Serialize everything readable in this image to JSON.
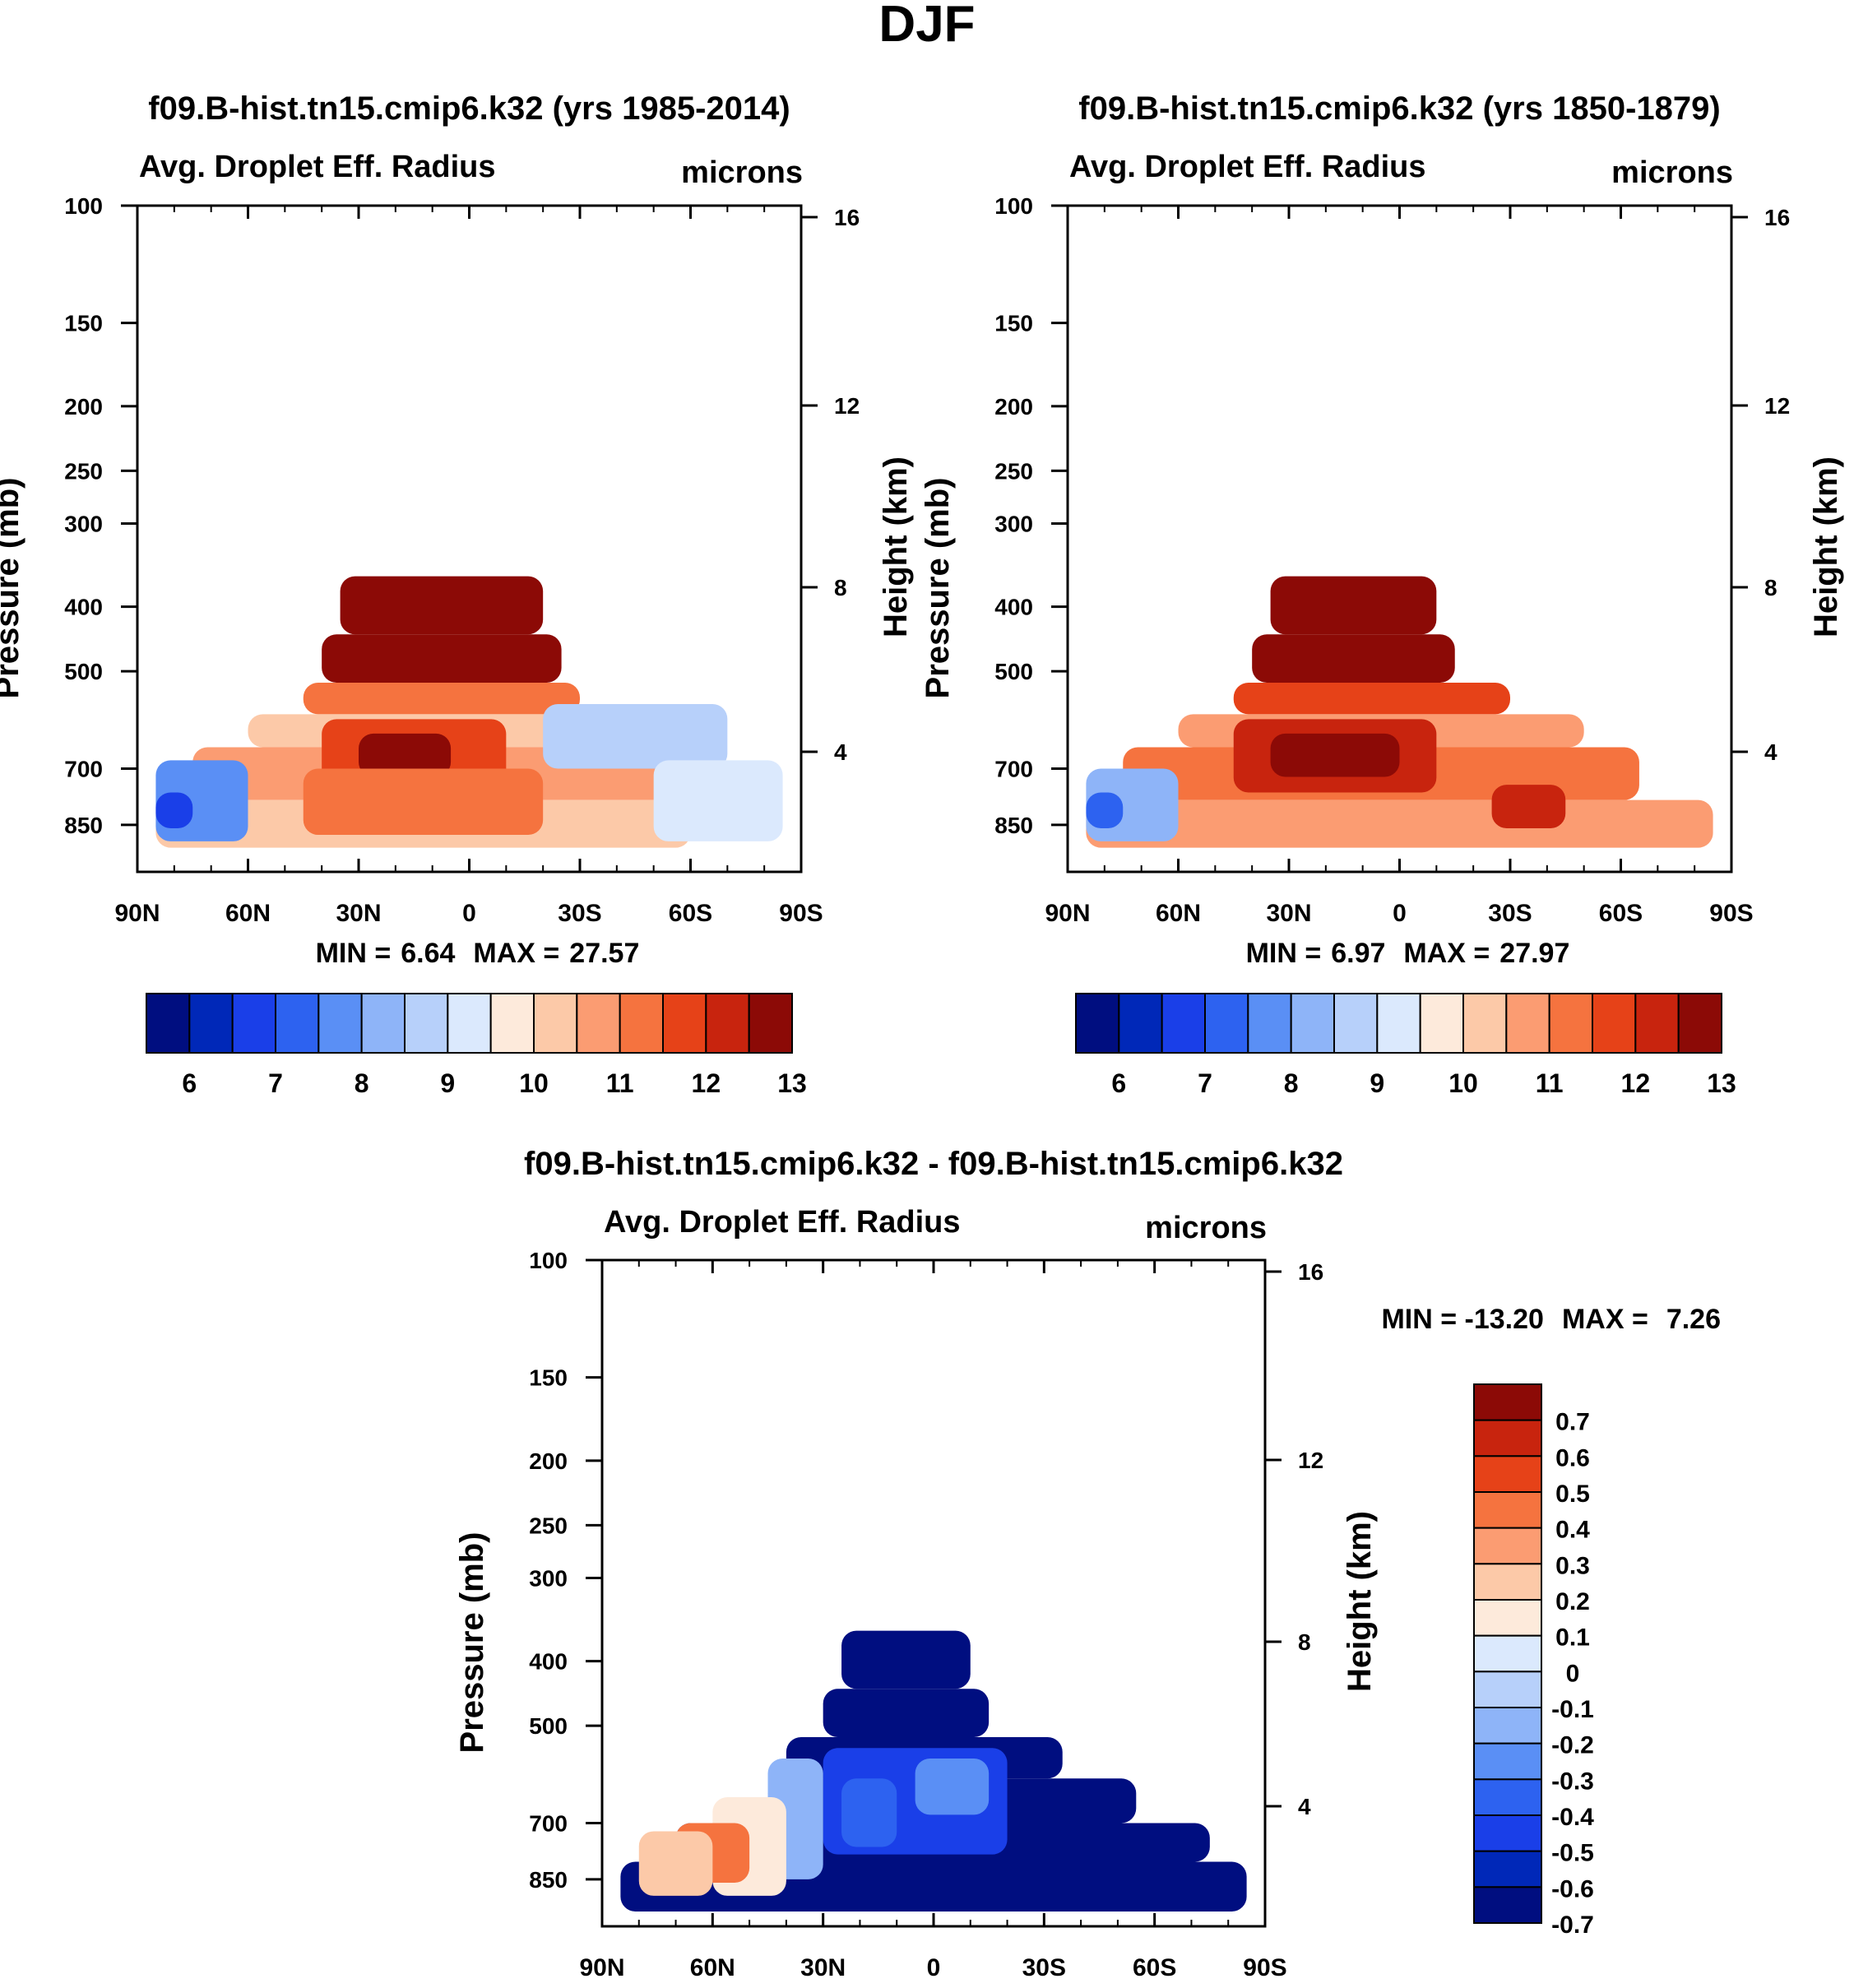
{
  "figure_title": "DJF",
  "colors": {
    "scale14": [
      "#000e80",
      "#0028b8",
      "#1a3fe8",
      "#2d62f0",
      "#5a8ff5",
      "#8eb4f8",
      "#b7d0fa",
      "#dbe9fd",
      "#fdeadb",
      "#fcc9a8",
      "#fb9c72",
      "#f5733f",
      "#e64218",
      "#c8240e",
      "#8c0a06"
    ],
    "diff": [
      "#000e80",
      "#0028b8",
      "#1a3fe8",
      "#2d62f0",
      "#5a8ff5",
      "#8eb4f8",
      "#b7d0fa",
      "#dbe9fd",
      "#fdeadb",
      "#fcc9a8",
      "#fb9c72",
      "#f5733f",
      "#e64218",
      "#c8240e",
      "#8c0a06"
    ]
  },
  "chart_data": [
    {
      "type": "heatmap",
      "id": "panel-1",
      "title": "f09.B-hist.tn15.cmip6.k32 (yrs 1985-2014)",
      "left_string": "Avg. Droplet Eff. Radius",
      "right_string": "microns",
      "ylabel": "Pressure (mb)",
      "ylabel_right": "Height (km)",
      "x_ticks": [
        "90N",
        "60N",
        "30N",
        "0",
        "30S",
        "60S",
        "90S"
      ],
      "y_ticks": [
        100,
        150,
        200,
        250,
        300,
        400,
        500,
        700,
        850
      ],
      "y_range": [
        100,
        1000
      ],
      "y_right_ticks": [
        16,
        12,
        8,
        4
      ],
      "stats": {
        "min_label": "MIN =",
        "min": "6.64",
        "max_label": "MAX =",
        "max": "27.57"
      },
      "colorbar_labels": [
        "6",
        "7",
        "8",
        "9",
        "10",
        "11",
        "12",
        "13"
      ],
      "field": [
        {
          "lat": [
            -20,
            35
          ],
          "p": [
            360,
            440
          ],
          "level": 14
        },
        {
          "lat": [
            -25,
            40
          ],
          "p": [
            440,
            520
          ],
          "level": 14
        },
        {
          "lat": [
            -30,
            45
          ],
          "p": [
            520,
            580
          ],
          "level": 11
        },
        {
          "lat": [
            -45,
            60
          ],
          "p": [
            580,
            650
          ],
          "level": 9
        },
        {
          "lat": [
            -55,
            75
          ],
          "p": [
            650,
            780
          ],
          "level": 10
        },
        {
          "lat": [
            -60,
            85
          ],
          "p": [
            780,
            920
          ],
          "level": 9
        },
        {
          "lat": [
            -10,
            40
          ],
          "p": [
            590,
            760
          ],
          "level": 12
        },
        {
          "lat": [
            5,
            30
          ],
          "p": [
            620,
            720
          ],
          "level": 14
        },
        {
          "lat": [
            -20,
            45
          ],
          "p": [
            700,
            880
          ],
          "level": 11
        },
        {
          "lat": [
            -70,
            -20
          ],
          "p": [
            560,
            700
          ],
          "level": 6
        },
        {
          "lat": [
            -85,
            -50
          ],
          "p": [
            680,
            900
          ],
          "level": 7
        },
        {
          "lat": [
            60,
            85
          ],
          "p": [
            680,
            900
          ],
          "level": 4
        },
        {
          "lat": [
            75,
            85
          ],
          "p": [
            760,
            860
          ],
          "level": 2
        }
      ]
    },
    {
      "type": "heatmap",
      "id": "panel-2",
      "title": "f09.B-hist.tn15.cmip6.k32 (yrs 1850-1879)",
      "left_string": "Avg. Droplet Eff. Radius",
      "right_string": "microns",
      "ylabel": "Pressure (mb)",
      "ylabel_right": "Height (km)",
      "x_ticks": [
        "90N",
        "60N",
        "30N",
        "0",
        "30S",
        "60S",
        "90S"
      ],
      "y_ticks": [
        100,
        150,
        200,
        250,
        300,
        400,
        500,
        700,
        850
      ],
      "y_range": [
        100,
        1000
      ],
      "y_right_ticks": [
        16,
        12,
        8,
        4
      ],
      "stats": {
        "min_label": "MIN =",
        "min": "6.97",
        "max_label": "MAX =",
        "max": "27.97"
      },
      "colorbar_labels": [
        "6",
        "7",
        "8",
        "9",
        "10",
        "11",
        "12",
        "13"
      ],
      "field": [
        {
          "lat": [
            -10,
            35
          ],
          "p": [
            360,
            440
          ],
          "level": 14
        },
        {
          "lat": [
            -15,
            40
          ],
          "p": [
            440,
            520
          ],
          "level": 14
        },
        {
          "lat": [
            -30,
            45
          ],
          "p": [
            520,
            580
          ],
          "level": 12
        },
        {
          "lat": [
            -50,
            60
          ],
          "p": [
            580,
            650
          ],
          "level": 10
        },
        {
          "lat": [
            -65,
            75
          ],
          "p": [
            650,
            780
          ],
          "level": 11
        },
        {
          "lat": [
            -85,
            85
          ],
          "p": [
            780,
            920
          ],
          "level": 10
        },
        {
          "lat": [
            -10,
            45
          ],
          "p": [
            590,
            760
          ],
          "level": 13
        },
        {
          "lat": [
            0,
            35
          ],
          "p": [
            620,
            720
          ],
          "level": 14
        },
        {
          "lat": [
            -45,
            -25
          ],
          "p": [
            740,
            860
          ],
          "level": 13
        },
        {
          "lat": [
            60,
            85
          ],
          "p": [
            700,
            900
          ],
          "level": 5
        },
        {
          "lat": [
            75,
            85
          ],
          "p": [
            760,
            860
          ],
          "level": 3
        }
      ]
    },
    {
      "type": "heatmap",
      "id": "panel-diff",
      "title": "f09.B-hist.tn15.cmip6.k32 - f09.B-hist.tn15.cmip6.k32",
      "left_string": "Avg. Droplet Eff. Radius",
      "right_string": "microns",
      "ylabel": "Pressure (mb)",
      "ylabel_right": "Height (km)",
      "x_ticks": [
        "90N",
        "60N",
        "30N",
        "0",
        "30S",
        "60S",
        "90S"
      ],
      "y_ticks": [
        100,
        150,
        200,
        250,
        300,
        400,
        500,
        700,
        850
      ],
      "y_range": [
        100,
        1000
      ],
      "y_right_ticks": [
        16,
        12,
        8,
        4
      ],
      "stats": {
        "min_label": "MIN = -13.20",
        "max_label": "MAX =",
        "max": "7.26"
      },
      "colorbar_labels": [
        "0.7",
        "0.6",
        "0.5",
        "0.4",
        "0.3",
        "0.2",
        "0.1",
        "0",
        "-0.1",
        "-0.2",
        "-0.3",
        "-0.4",
        "-0.5",
        "-0.6",
        "-0.7"
      ],
      "field": [
        {
          "lat": [
            -10,
            25
          ],
          "p": [
            360,
            440
          ],
          "level": 0
        },
        {
          "lat": [
            -15,
            30
          ],
          "p": [
            440,
            520
          ],
          "level": 0
        },
        {
          "lat": [
            -35,
            40
          ],
          "p": [
            520,
            600
          ],
          "level": 0
        },
        {
          "lat": [
            -55,
            45
          ],
          "p": [
            600,
            700
          ],
          "level": 0
        },
        {
          "lat": [
            -75,
            70
          ],
          "p": [
            700,
            800
          ],
          "level": 0
        },
        {
          "lat": [
            -85,
            85
          ],
          "p": [
            800,
            950
          ],
          "level": 0
        },
        {
          "lat": [
            -20,
            30
          ],
          "p": [
            540,
            780
          ],
          "level": 2
        },
        {
          "lat": [
            -15,
            5
          ],
          "p": [
            560,
            680
          ],
          "level": 4
        },
        {
          "lat": [
            10,
            25
          ],
          "p": [
            600,
            760
          ],
          "level": 3
        },
        {
          "lat": [
            30,
            45
          ],
          "p": [
            560,
            850
          ],
          "level": 5
        },
        {
          "lat": [
            40,
            60
          ],
          "p": [
            640,
            900
          ],
          "level": 8
        },
        {
          "lat": [
            50,
            70
          ],
          "p": [
            700,
            860
          ],
          "level": 11
        },
        {
          "lat": [
            60,
            80
          ],
          "p": [
            720,
            900
          ],
          "level": 9
        }
      ]
    }
  ]
}
